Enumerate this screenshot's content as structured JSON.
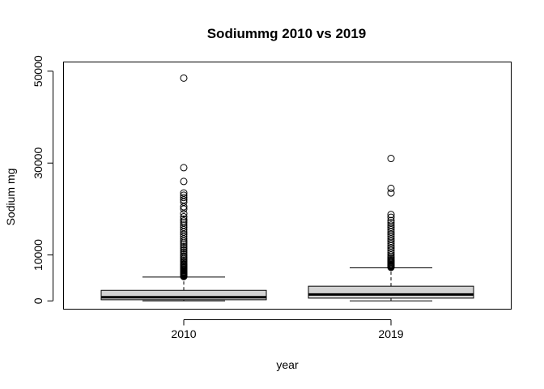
{
  "chart_data": {
    "type": "box",
    "title": "Sodiummg 2010 vs 2019",
    "xlabel": "year",
    "ylabel": "Sodium mg",
    "categories": [
      "2010",
      "2019"
    ],
    "y_ticks": [
      0,
      10000,
      30000,
      50000
    ],
    "y_tick_labels": [
      "0",
      "10000",
      "30000",
      "50000"
    ],
    "ylim": [
      -1800,
      52000
    ],
    "box_fill": "#d3d3d3",
    "boxes": [
      {
        "name": "2010",
        "whisker_low": 0,
        "q1": 250,
        "median": 800,
        "q3": 2300,
        "whisker_high": 5200,
        "outliers": [
          5300,
          5400,
          5500,
          5600,
          5700,
          5800,
          5900,
          6000,
          6100,
          6200,
          6300,
          6400,
          6600,
          6800,
          7000,
          7200,
          7400,
          7600,
          7800,
          8000,
          8300,
          8600,
          8900,
          9200,
          9500,
          9800,
          10200,
          10600,
          11000,
          11400,
          11800,
          12200,
          12600,
          13000,
          13500,
          14000,
          14500,
          15000,
          15500,
          16000,
          16500,
          17000,
          17400,
          17800,
          18300,
          19000,
          20000,
          20500,
          21500,
          22000,
          22500,
          23000,
          23500,
          26000,
          29000,
          48500
        ]
      },
      {
        "name": "2019",
        "whisker_low": 0,
        "q1": 600,
        "median": 1400,
        "q3": 3200,
        "whisker_high": 7200,
        "outliers": [
          7300,
          7400,
          7500,
          7600,
          7700,
          7800,
          8000,
          8200,
          8400,
          8600,
          8800,
          9000,
          9300,
          9600,
          10000,
          10500,
          11000,
          11500,
          12000,
          12500,
          13000,
          13500,
          14000,
          14500,
          15000,
          15500,
          16000,
          16500,
          17000,
          17500,
          18200,
          18800,
          23500,
          24500,
          31000
        ]
      }
    ]
  }
}
